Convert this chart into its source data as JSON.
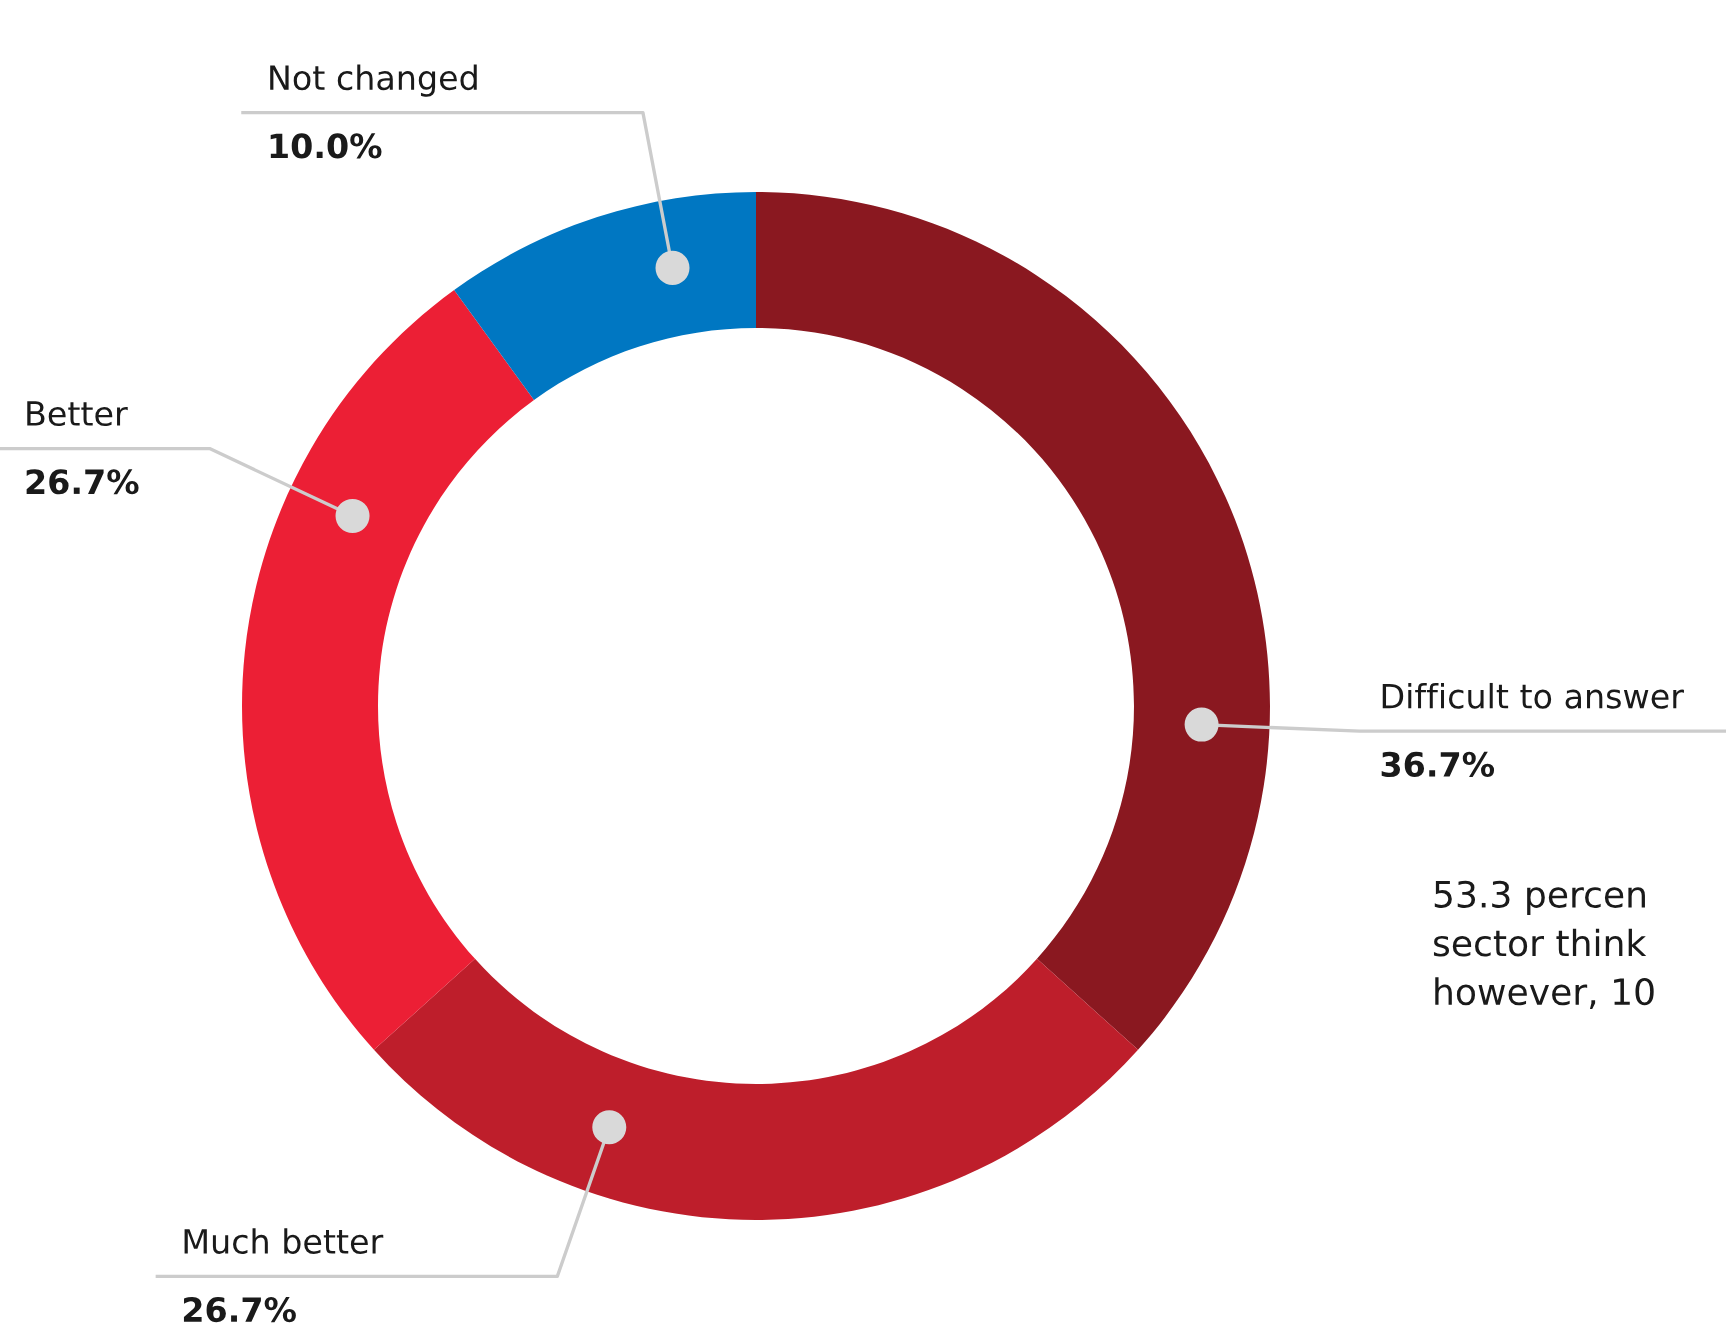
{
  "chart_data": {
    "type": "donut",
    "categories": [
      "Difficult to answer",
      "Much better",
      "Better",
      "Not changed"
    ],
    "values": [
      36.7,
      26.7,
      26.7,
      10.0
    ],
    "colors": [
      "#8a1820",
      "#be1e2b",
      "#ec1f35",
      "#0077c2"
    ],
    "value_labels": [
      "36.7%",
      "26.7%",
      "26.7%",
      "10.0%"
    ],
    "annotations": [
      "53.3 percen\nsector think\nhowever, 10"
    ]
  }
}
